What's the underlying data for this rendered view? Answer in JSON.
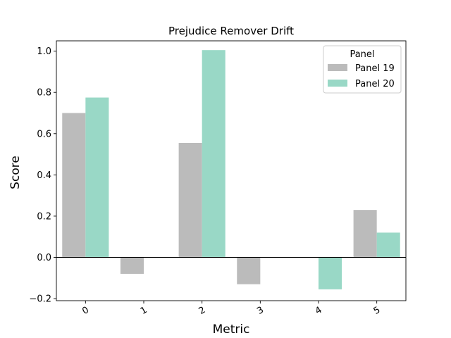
{
  "chart_data": {
    "type": "bar",
    "title": "Prejudice Remover Drift",
    "xlabel": "Metric",
    "ylabel": "Score",
    "categories": [
      "0",
      "1",
      "2",
      "3",
      "4",
      "5"
    ],
    "series": [
      {
        "name": "Panel 19",
        "color": "#bbbbbb",
        "values": [
          0.7,
          -0.08,
          0.555,
          -0.13,
          0.0,
          0.23
        ]
      },
      {
        "name": "Panel 20",
        "color": "#99d8c6",
        "values": [
          0.775,
          0.0,
          1.005,
          0.0,
          -0.155,
          0.12
        ]
      }
    ],
    "ylim": [
      -0.21,
      1.05
    ],
    "yticks": [
      -0.2,
      0.0,
      0.2,
      0.4,
      0.6,
      0.8,
      1.0
    ],
    "ytick_labels": [
      "−0.2",
      "0.0",
      "0.2",
      "0.4",
      "0.6",
      "0.8",
      "1.0"
    ],
    "legend": {
      "title": "Panel",
      "placement": "top-right"
    },
    "zero_line": true,
    "grid": false
  }
}
